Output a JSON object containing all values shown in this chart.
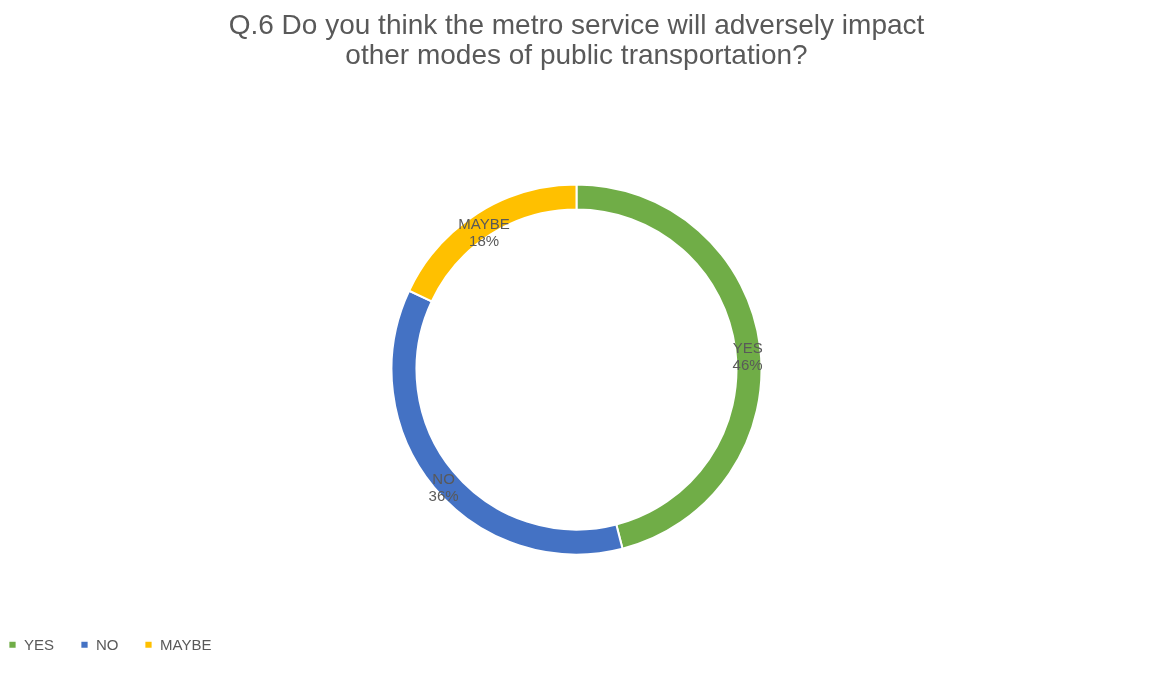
{
  "chart_data": {
    "type": "donut",
    "title": "Q.6 Do you think the metro service will adversely impact other modes of public transportation?",
    "categories": [
      "YES",
      "NO",
      "MAYBE"
    ],
    "values": [
      46,
      36,
      18
    ],
    "colors": [
      "#70ad47",
      "#4472c4",
      "#ffc000"
    ],
    "value_labels": [
      "46%",
      "36%",
      "18%"
    ],
    "legend": "bottom"
  }
}
